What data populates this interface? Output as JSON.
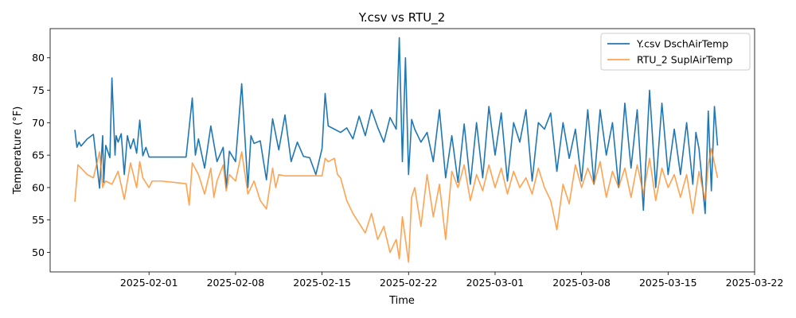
{
  "chart_data": {
    "type": "line",
    "title": "Y.csv vs RTU_2",
    "xlabel": "Time",
    "ylabel": "Temperature (°F)",
    "x_type": "date",
    "xlim": [
      "2025-01-24",
      "2025-03-22"
    ],
    "ylim": [
      47,
      84.5
    ],
    "x_ticks": [
      "2025-02-01",
      "2025-02-08",
      "2025-02-15",
      "2025-02-22",
      "2025-03-01",
      "2025-03-08",
      "2025-03-15",
      "2025-03-22"
    ],
    "y_ticks": [
      50,
      55,
      60,
      65,
      70,
      75,
      80
    ],
    "legend_position": "top-right",
    "grid": false,
    "series": [
      {
        "name": "Y.csv DschAirTemp",
        "color": "#1f77b4",
        "x": [
          "2025-01-26T00:00",
          "2025-01-26T04:00",
          "2025-01-26T08:00",
          "2025-01-26T12:00",
          "2025-01-27T00:00",
          "2025-01-27T12:00",
          "2025-01-28T00:00",
          "2025-01-28T06:00",
          "2025-01-28T08:00",
          "2025-01-28T12:00",
          "2025-01-28T20:00",
          "2025-01-29T00:00",
          "2025-01-29T06:00",
          "2025-01-29T08:00",
          "2025-01-29T12:00",
          "2025-01-29T18:00",
          "2025-01-30T00:00",
          "2025-01-30T06:00",
          "2025-01-30T12:00",
          "2025-01-30T18:00",
          "2025-01-31T00:00",
          "2025-01-31T06:00",
          "2025-01-31T12:00",
          "2025-01-31T18:00",
          "2025-02-01T00:00",
          "2025-02-01T06:00",
          "2025-02-01T12:00",
          "2025-02-01T18:00",
          "2025-02-02T00:00",
          "2025-02-04T00:00",
          "2025-02-04T12:00",
          "2025-02-04T18:00",
          "2025-02-05T00:00",
          "2025-02-05T12:00",
          "2025-02-06T00:00",
          "2025-02-06T12:00",
          "2025-02-07T00:00",
          "2025-02-07T06:00",
          "2025-02-07T12:00",
          "2025-02-08T00:00",
          "2025-02-08T12:00",
          "2025-02-09T00:00",
          "2025-02-09T06:00",
          "2025-02-09T12:00",
          "2025-02-10T00:00",
          "2025-02-10T12:00",
          "2025-02-11T00:00",
          "2025-02-11T12:00",
          "2025-02-12T00:00",
          "2025-02-12T12:00",
          "2025-02-13T00:00",
          "2025-02-13T12:00",
          "2025-02-14T00:00",
          "2025-02-14T12:00",
          "2025-02-15T00:00",
          "2025-02-15T06:00",
          "2025-02-15T12:00",
          "2025-02-16T00:00",
          "2025-02-16T12:00",
          "2025-02-17T00:00",
          "2025-02-17T12:00",
          "2025-02-18T00:00",
          "2025-02-18T12:00",
          "2025-02-19T00:00",
          "2025-02-19T12:00",
          "2025-02-20T00:00",
          "2025-02-20T12:00",
          "2025-02-21T00:00",
          "2025-02-21T06:00",
          "2025-02-21T12:00",
          "2025-02-21T18:00",
          "2025-02-22T00:00",
          "2025-02-22T06:00",
          "2025-02-22T12:00",
          "2025-02-23T00:00",
          "2025-02-23T12:00",
          "2025-02-24T00:00",
          "2025-02-24T12:00",
          "2025-02-25T00:00",
          "2025-02-25T12:00",
          "2025-02-26T00:00",
          "2025-02-26T12:00",
          "2025-02-27T00:00",
          "2025-02-27T12:00",
          "2025-02-28T00:00",
          "2025-02-28T12:00",
          "2025-03-01T00:00",
          "2025-03-01T12:00",
          "2025-03-02T00:00",
          "2025-03-02T12:00",
          "2025-03-03T00:00",
          "2025-03-03T12:00",
          "2025-03-04T00:00",
          "2025-03-04T12:00",
          "2025-03-05T00:00",
          "2025-03-05T12:00",
          "2025-03-06T00:00",
          "2025-03-06T12:00",
          "2025-03-07T00:00",
          "2025-03-07T12:00",
          "2025-03-08T00:00",
          "2025-03-08T12:00",
          "2025-03-09T00:00",
          "2025-03-09T12:00",
          "2025-03-10T00:00",
          "2025-03-10T12:00",
          "2025-03-11T00:00",
          "2025-03-11T12:00",
          "2025-03-12T00:00",
          "2025-03-12T12:00",
          "2025-03-13T00:00",
          "2025-03-13T12:00",
          "2025-03-14T00:00",
          "2025-03-14T12:00",
          "2025-03-15T00:00",
          "2025-03-15T12:00",
          "2025-03-16T00:00",
          "2025-03-16T12:00",
          "2025-03-17T00:00",
          "2025-03-17T06:00",
          "2025-03-17T12:00",
          "2025-03-18T00:00",
          "2025-03-18T06:00",
          "2025-03-18T12:00",
          "2025-03-18T18:00",
          "2025-03-19T00:00"
        ],
        "y": [
          68.9,
          66.2,
          67.0,
          66.4,
          67.5,
          68.2,
          59.9,
          68.0,
          60.8,
          66.5,
          64.6,
          76.9,
          65.0,
          68.0,
          67.0,
          68.3,
          62.0,
          68.0,
          66.0,
          67.5,
          65.3,
          70.4,
          64.9,
          66.2,
          64.7,
          64.7,
          64.7,
          64.7,
          64.7,
          64.7,
          73.8,
          65.0,
          67.5,
          63.0,
          69.5,
          64.0,
          66.2,
          60.0,
          65.6,
          64.0,
          76.0,
          60.0,
          68.0,
          66.8,
          67.2,
          61.2,
          70.6,
          65.8,
          71.2,
          64.0,
          67.0,
          64.8,
          64.6,
          62.0,
          66.0,
          74.5,
          69.5,
          69.0,
          68.5,
          69.2,
          67.5,
          71.0,
          68.0,
          72.0,
          69.3,
          67.0,
          70.8,
          69.0,
          83.1,
          64.0,
          80.0,
          62.0,
          70.5,
          69.0,
          67.0,
          68.5,
          64.0,
          72.0,
          61.5,
          68.0,
          60.8,
          69.8,
          60.5,
          70.0,
          61.5,
          72.5,
          65.0,
          71.5,
          61.0,
          70.0,
          67.0,
          72.0,
          61.0,
          70.0,
          69.0,
          71.5,
          62.5,
          70.0,
          64.5,
          69.0,
          61.0,
          72.0,
          60.5,
          72.0,
          65.0,
          70.0,
          60.0,
          73.0,
          63.0,
          72.0,
          56.5,
          75.0,
          60.0,
          73.0,
          62.0,
          69.0,
          62.0,
          70.0,
          60.5,
          68.5,
          66.0,
          56.0,
          71.8,
          59.5,
          72.5,
          66.5
        ]
      },
      {
        "name": "RTU_2 SuplAirTemp",
        "color": "#ff7f0e",
        "x": [
          "2025-01-26T00:00",
          "2025-01-26T06:00",
          "2025-01-26T12:00",
          "2025-01-27T00:00",
          "2025-01-27T12:00",
          "2025-01-28T00:00",
          "2025-01-28T06:00",
          "2025-01-28T08:00",
          "2025-01-28T12:00",
          "2025-01-29T00:00",
          "2025-01-29T12:00",
          "2025-01-30T00:00",
          "2025-01-30T06:00",
          "2025-01-30T12:00",
          "2025-01-31T00:00",
          "2025-01-31T06:00",
          "2025-01-31T12:00",
          "2025-02-01T00:00",
          "2025-02-01T06:00",
          "2025-02-01T12:00",
          "2025-02-02T00:00",
          "2025-02-03T00:00",
          "2025-02-04T00:00",
          "2025-02-04T06:00",
          "2025-02-04T12:00",
          "2025-02-05T00:00",
          "2025-02-05T12:00",
          "2025-02-06T00:00",
          "2025-02-06T06:00",
          "2025-02-06T12:00",
          "2025-02-07T00:00",
          "2025-02-07T06:00",
          "2025-02-07T12:00",
          "2025-02-08T00:00",
          "2025-02-08T12:00",
          "2025-02-09T00:00",
          "2025-02-09T06:00",
          "2025-02-09T12:00",
          "2025-02-10T00:00",
          "2025-02-10T12:00",
          "2025-02-11T00:00",
          "2025-02-11T06:00",
          "2025-02-11T12:00",
          "2025-02-12T00:00",
          "2025-02-13T00:00",
          "2025-02-14T00:00",
          "2025-02-15T00:00",
          "2025-02-15T06:00",
          "2025-02-15T12:00",
          "2025-02-16T00:00",
          "2025-02-16T06:00",
          "2025-02-16T12:00",
          "2025-02-17T00:00",
          "2025-02-17T12:00",
          "2025-02-18T00:00",
          "2025-02-18T12:00",
          "2025-02-19T00:00",
          "2025-02-19T12:00",
          "2025-02-20T00:00",
          "2025-02-20T12:00",
          "2025-02-21T00:00",
          "2025-02-21T06:00",
          "2025-02-21T12:00",
          "2025-02-22T00:00",
          "2025-02-22T06:00",
          "2025-02-22T12:00",
          "2025-02-23T00:00",
          "2025-02-23T12:00",
          "2025-02-24T00:00",
          "2025-02-24T12:00",
          "2025-02-25T00:00",
          "2025-02-25T12:00",
          "2025-02-26T00:00",
          "2025-02-26T12:00",
          "2025-02-27T00:00",
          "2025-02-27T12:00",
          "2025-02-28T00:00",
          "2025-02-28T12:00",
          "2025-03-01T00:00",
          "2025-03-01T12:00",
          "2025-03-02T00:00",
          "2025-03-02T12:00",
          "2025-03-03T00:00",
          "2025-03-03T12:00",
          "2025-03-04T00:00",
          "2025-03-04T12:00",
          "2025-03-05T00:00",
          "2025-03-05T12:00",
          "2025-03-06T00:00",
          "2025-03-06T12:00",
          "2025-03-07T00:00",
          "2025-03-07T12:00",
          "2025-03-08T00:00",
          "2025-03-08T12:00",
          "2025-03-09T00:00",
          "2025-03-09T12:00",
          "2025-03-10T00:00",
          "2025-03-10T12:00",
          "2025-03-11T00:00",
          "2025-03-11T12:00",
          "2025-03-12T00:00",
          "2025-03-12T12:00",
          "2025-03-13T00:00",
          "2025-03-13T12:00",
          "2025-03-14T00:00",
          "2025-03-14T12:00",
          "2025-03-15T00:00",
          "2025-03-15T12:00",
          "2025-03-16T00:00",
          "2025-03-16T12:00",
          "2025-03-17T00:00",
          "2025-03-17T12:00",
          "2025-03-18T00:00",
          "2025-03-18T06:00",
          "2025-03-18T12:00",
          "2025-03-19T00:00"
        ],
        "y": [
          57.8,
          63.5,
          63.0,
          62.0,
          61.5,
          65.5,
          60.0,
          60.5,
          61.0,
          60.5,
          62.5,
          58.2,
          61.0,
          63.8,
          60.0,
          64.0,
          61.5,
          60.0,
          61.0,
          61.0,
          61.0,
          60.8,
          60.6,
          57.3,
          63.8,
          62.0,
          59.0,
          63.0,
          58.5,
          61.0,
          63.5,
          59.5,
          62.0,
          61.0,
          65.5,
          59.0,
          60.0,
          61.0,
          58.0,
          56.7,
          63.0,
          60.0,
          62.0,
          61.8,
          61.8,
          61.8,
          61.8,
          64.5,
          64.0,
          64.5,
          62.0,
          61.5,
          58.0,
          56.0,
          54.5,
          53.0,
          56.0,
          52.0,
          54.0,
          50.0,
          52.0,
          49.0,
          55.5,
          48.5,
          58.5,
          60.0,
          54.0,
          62.0,
          55.5,
          60.5,
          52.0,
          62.5,
          60.0,
          63.5,
          58.0,
          62.0,
          59.5,
          63.5,
          60.0,
          63.0,
          59.0,
          62.5,
          60.0,
          61.5,
          59.0,
          63.0,
          60.0,
          58.0,
          53.5,
          60.5,
          57.5,
          63.5,
          60.0,
          63.0,
          60.5,
          64.0,
          58.5,
          62.5,
          60.0,
          63.0,
          58.5,
          63.5,
          59.0,
          64.5,
          58.0,
          63.0,
          60.0,
          62.0,
          58.5,
          62.0,
          56.0,
          62.5,
          58.0,
          63.5,
          66.0,
          61.5
        ]
      }
    ]
  }
}
